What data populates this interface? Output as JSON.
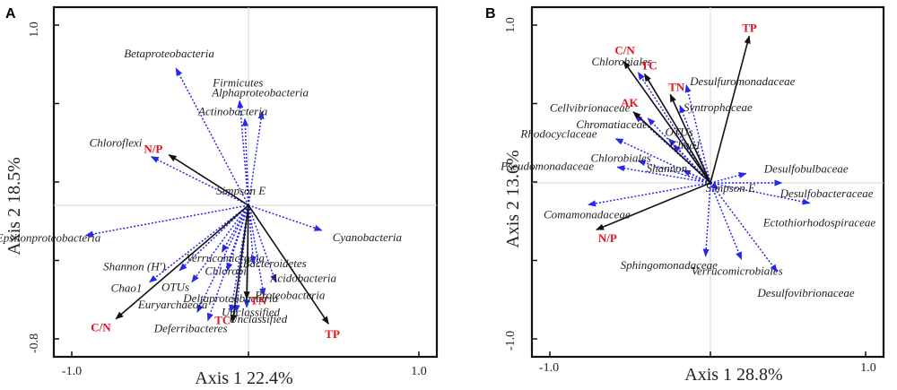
{
  "chart_data": [
    {
      "type": "scatter",
      "panel_label": "A",
      "xlabel": "Axis 1 22.4%",
      "ylabel": "Axis 2 18.5%",
      "xlim": [
        -1.0,
        1.0
      ],
      "ylim": [
        -0.8,
        1.0
      ],
      "x_tick_labels": [
        "-1.0",
        "1.0"
      ],
      "y_tick_labels": [
        "1.0",
        "-0.8"
      ],
      "species": [
        {
          "name": "Betaproteobacteria",
          "x": -0.41,
          "y": 0.76
        },
        {
          "name": "Firmicutes",
          "x": -0.05,
          "y": 0.58
        },
        {
          "name": "Alphaproteobacteria",
          "x": 0.08,
          "y": 0.52
        },
        {
          "name": "Actinobacteria",
          "x": -0.02,
          "y": 0.48
        },
        {
          "name": "Chloroflexi",
          "x": -0.55,
          "y": 0.27
        },
        {
          "name": "Epsilonproteobacteria",
          "x": -0.92,
          "y": -0.18
        },
        {
          "name": "Cyanobacteria",
          "x": 0.43,
          "y": -0.15
        },
        {
          "name": "Verrucomicrobia",
          "x": -0.15,
          "y": -0.28
        },
        {
          "name": "Bacteroidetes",
          "x": 0.03,
          "y": -0.35
        },
        {
          "name": "Chlorobi",
          "x": -0.12,
          "y": -0.39
        },
        {
          "name": "Acidobacteria",
          "x": 0.16,
          "y": -0.46
        },
        {
          "name": "Shannon (H')",
          "x": -0.39,
          "y": -0.39
        },
        {
          "name": "Chao1",
          "x": -0.56,
          "y": -0.46
        },
        {
          "name": "OTUs",
          "x": -0.32,
          "y": -0.46
        },
        {
          "name": "Proteobacteria",
          "x": 0.09,
          "y": -0.54
        },
        {
          "name": "Unclassified",
          "x": -0.01,
          "y": -0.61
        },
        {
          "name": "Euryarchaeota",
          "x": -0.29,
          "y": -0.64
        },
        {
          "name": "Deltaproteobacteria",
          "x": -0.1,
          "y": -0.64
        },
        {
          "name": "Deferribacteres",
          "x": -0.23,
          "y": -0.69
        },
        {
          "name": "Unclassified",
          "x": -0.07,
          "y": -0.64
        }
      ],
      "env": [
        {
          "name": "N/P",
          "x": -0.45,
          "y": 0.28
        },
        {
          "name": "C/N",
          "x": -0.75,
          "y": -0.68
        },
        {
          "name": "TC",
          "x": -0.09,
          "y": -0.7
        },
        {
          "name": "TN",
          "x": -0.01,
          "y": -0.56
        },
        {
          "name": "TP",
          "x": 0.47,
          "y": -0.71
        }
      ],
      "center_label": "Simpson E"
    },
    {
      "type": "scatter",
      "panel_label": "B",
      "xlabel": "Axis 1 28.8%",
      "ylabel": "Axis 2 13.6%",
      "xlim": [
        -1.0,
        1.0
      ],
      "ylim": [
        -1.0,
        1.0
      ],
      "x_tick_labels": [
        "-1.0",
        "1.0"
      ],
      "y_tick_labels": [
        "1.0",
        "-1.0"
      ],
      "species": [
        {
          "name": "Desulfuromonadaceae",
          "x": -0.15,
          "y": 0.62
        },
        {
          "name": "Chlorobiales",
          "x": -0.45,
          "y": 0.7
        },
        {
          "name": "Syntrophaceae",
          "x": -0.19,
          "y": 0.49
        },
        {
          "name": "Cellvibrionaceae",
          "x": -0.47,
          "y": 0.43
        },
        {
          "name": "Chromatiaceae",
          "x": -0.39,
          "y": 0.41
        },
        {
          "name": "OTUs",
          "x": -0.26,
          "y": 0.28
        },
        {
          "name": "Chao1",
          "x": -0.23,
          "y": 0.24
        },
        {
          "name": "Rhodocyclaceae",
          "x": -0.59,
          "y": 0.28
        },
        {
          "name": "Chlorobiales",
          "x": -0.45,
          "y": 0.14
        },
        {
          "name": "Shannon",
          "x": -0.17,
          "y": 0.08
        },
        {
          "name": "Pseudomonadaceae",
          "x": -0.58,
          "y": 0.1
        },
        {
          "name": "Desulfobulbaceae",
          "x": 0.23,
          "y": 0.06
        },
        {
          "name": "Desulfobacteraceae",
          "x": 0.46,
          "y": 0.0
        },
        {
          "name": "Ectothiorhodospiraceae",
          "x": 0.64,
          "y": -0.13
        },
        {
          "name": "Simpson E",
          "x": 0.05,
          "y": -0.04
        },
        {
          "name": "Comamonadaceae",
          "x": -0.76,
          "y": -0.14
        },
        {
          "name": "Sphingomonadaceae",
          "x": -0.03,
          "y": -0.47
        },
        {
          "name": "Verrucomicrobiales",
          "x": 0.2,
          "y": -0.49
        },
        {
          "name": "Desulfovibrionaceae",
          "x": 0.43,
          "y": -0.57
        }
      ],
      "env": [
        {
          "name": "C/N",
          "x": -0.54,
          "y": 0.77
        },
        {
          "name": "TC",
          "x": -0.41,
          "y": 0.69
        },
        {
          "name": "TN",
          "x": -0.25,
          "y": 0.56
        },
        {
          "name": "AK",
          "x": -0.48,
          "y": 0.45
        },
        {
          "name": "TP",
          "x": 0.25,
          "y": 0.93
        },
        {
          "name": "N/P",
          "x": -0.71,
          "y": -0.3
        }
      ],
      "center_label": ""
    }
  ]
}
